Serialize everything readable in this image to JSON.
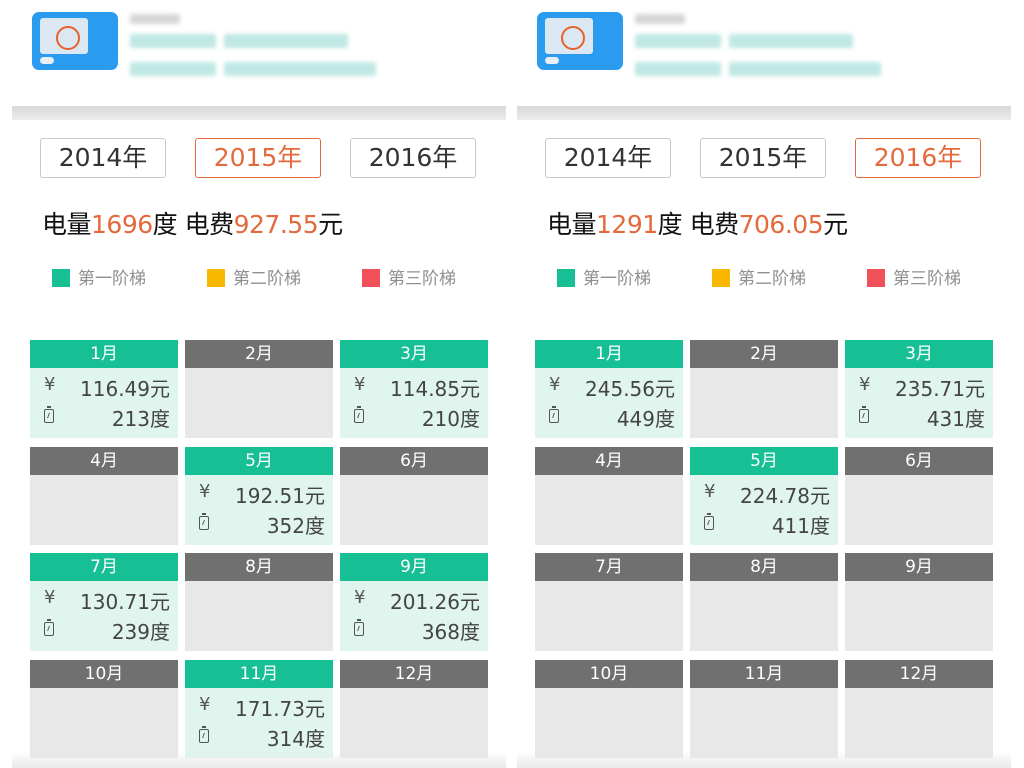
{
  "panels": [
    {
      "years": [
        {
          "label": "2014年",
          "active": false
        },
        {
          "label": "2015年",
          "active": true
        },
        {
          "label": "2016年",
          "active": false
        }
      ],
      "summary": {
        "power_label": "电量",
        "power_value": "1696",
        "power_unit": "度",
        "fee_label": "电费",
        "fee_value": "927.55",
        "fee_unit": "元"
      },
      "legend": [
        {
          "label": "第一阶梯",
          "color": "#17bf94"
        },
        {
          "label": "第二阶梯",
          "color": "#f9b800"
        },
        {
          "label": "第三阶梯",
          "color": "#f0505a"
        }
      ],
      "months": [
        {
          "label": "1月",
          "fee": "116.49元",
          "kwh": "213度"
        },
        {
          "label": "2月"
        },
        {
          "label": "3月",
          "fee": "114.85元",
          "kwh": "210度"
        },
        {
          "label": "4月"
        },
        {
          "label": "5月",
          "fee": "192.51元",
          "kwh": "352度"
        },
        {
          "label": "6月"
        },
        {
          "label": "7月",
          "fee": "130.71元",
          "kwh": "239度"
        },
        {
          "label": "8月"
        },
        {
          "label": "9月",
          "fee": "201.26元",
          "kwh": "368度"
        },
        {
          "label": "10月"
        },
        {
          "label": "11月",
          "fee": "171.73元",
          "kwh": "314度"
        },
        {
          "label": "12月"
        }
      ]
    },
    {
      "years": [
        {
          "label": "2014年",
          "active": false
        },
        {
          "label": "2015年",
          "active": false
        },
        {
          "label": "2016年",
          "active": true
        }
      ],
      "summary": {
        "power_label": "电量",
        "power_value": "1291",
        "power_unit": "度",
        "fee_label": "电费",
        "fee_value": "706.05",
        "fee_unit": "元"
      },
      "legend": [
        {
          "label": "第一阶梯",
          "color": "#17bf94"
        },
        {
          "label": "第二阶梯",
          "color": "#f9b800"
        },
        {
          "label": "第三阶梯",
          "color": "#f0505a"
        }
      ],
      "months": [
        {
          "label": "1月",
          "fee": "245.56元",
          "kwh": "449度"
        },
        {
          "label": "2月"
        },
        {
          "label": "3月",
          "fee": "235.71元",
          "kwh": "431度"
        },
        {
          "label": "4月"
        },
        {
          "label": "5月",
          "fee": "224.78元",
          "kwh": "411度"
        },
        {
          "label": "6月"
        },
        {
          "label": "7月"
        },
        {
          "label": "8月"
        },
        {
          "label": "9月"
        },
        {
          "label": "10月"
        },
        {
          "label": "11月"
        },
        {
          "label": "12月"
        }
      ]
    }
  ],
  "icons": {
    "card": "utility-card-icon",
    "currency": "yuan-icon",
    "battery": "battery-icon"
  },
  "currency_symbol": "¥"
}
